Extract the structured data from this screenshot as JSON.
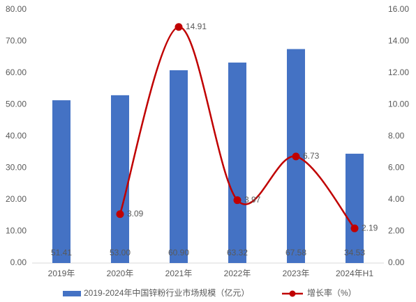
{
  "chart_data": {
    "type": "bar",
    "categories": [
      "2019年",
      "2020年",
      "2021年",
      "2022年",
      "2023年",
      "2024年H1"
    ],
    "series": [
      {
        "name": "2019-2024年中国锌粉行业市场规模（亿元）",
        "type": "bar",
        "color": "#4472c4",
        "values": [
          51.41,
          53.0,
          60.9,
          63.32,
          67.58,
          34.53
        ],
        "value_labels": [
          "51.41",
          "53.00",
          "60.90",
          "63.32",
          "67.58",
          "34.53"
        ]
      },
      {
        "name": "增长率（%）",
        "type": "line",
        "axis": "y2",
        "color": "#c00000",
        "values": [
          null,
          3.09,
          14.91,
          3.97,
          6.73,
          2.19
        ],
        "value_labels": [
          null,
          "3.09",
          "14.91",
          "3.97",
          "6.73",
          "2.19"
        ]
      }
    ],
    "ylim": [
      0,
      80
    ],
    "yticks": [
      {
        "value": 0,
        "label": "0.00"
      },
      {
        "value": 10,
        "label": "10.00"
      },
      {
        "value": 20,
        "label": "20.00"
      },
      {
        "value": 30,
        "label": "30.00"
      },
      {
        "value": 40,
        "label": "40.00"
      },
      {
        "value": 50,
        "label": "50.00"
      },
      {
        "value": 60,
        "label": "60.00"
      },
      {
        "value": 70,
        "label": "70.00"
      },
      {
        "value": 80,
        "label": "80.00"
      }
    ],
    "y2lim": [
      0,
      16
    ],
    "y2ticks": [
      {
        "value": 0,
        "label": "0.00"
      },
      {
        "value": 2,
        "label": "2.00"
      },
      {
        "value": 4,
        "label": "4.00"
      },
      {
        "value": 6,
        "label": "6.00"
      },
      {
        "value": 8,
        "label": "8.00"
      },
      {
        "value": 10,
        "label": "10.00"
      },
      {
        "value": 12,
        "label": "12.00"
      },
      {
        "value": 14,
        "label": "14.00"
      },
      {
        "value": 16,
        "label": "16.00"
      }
    ],
    "grid": false,
    "legend": "bottom"
  }
}
